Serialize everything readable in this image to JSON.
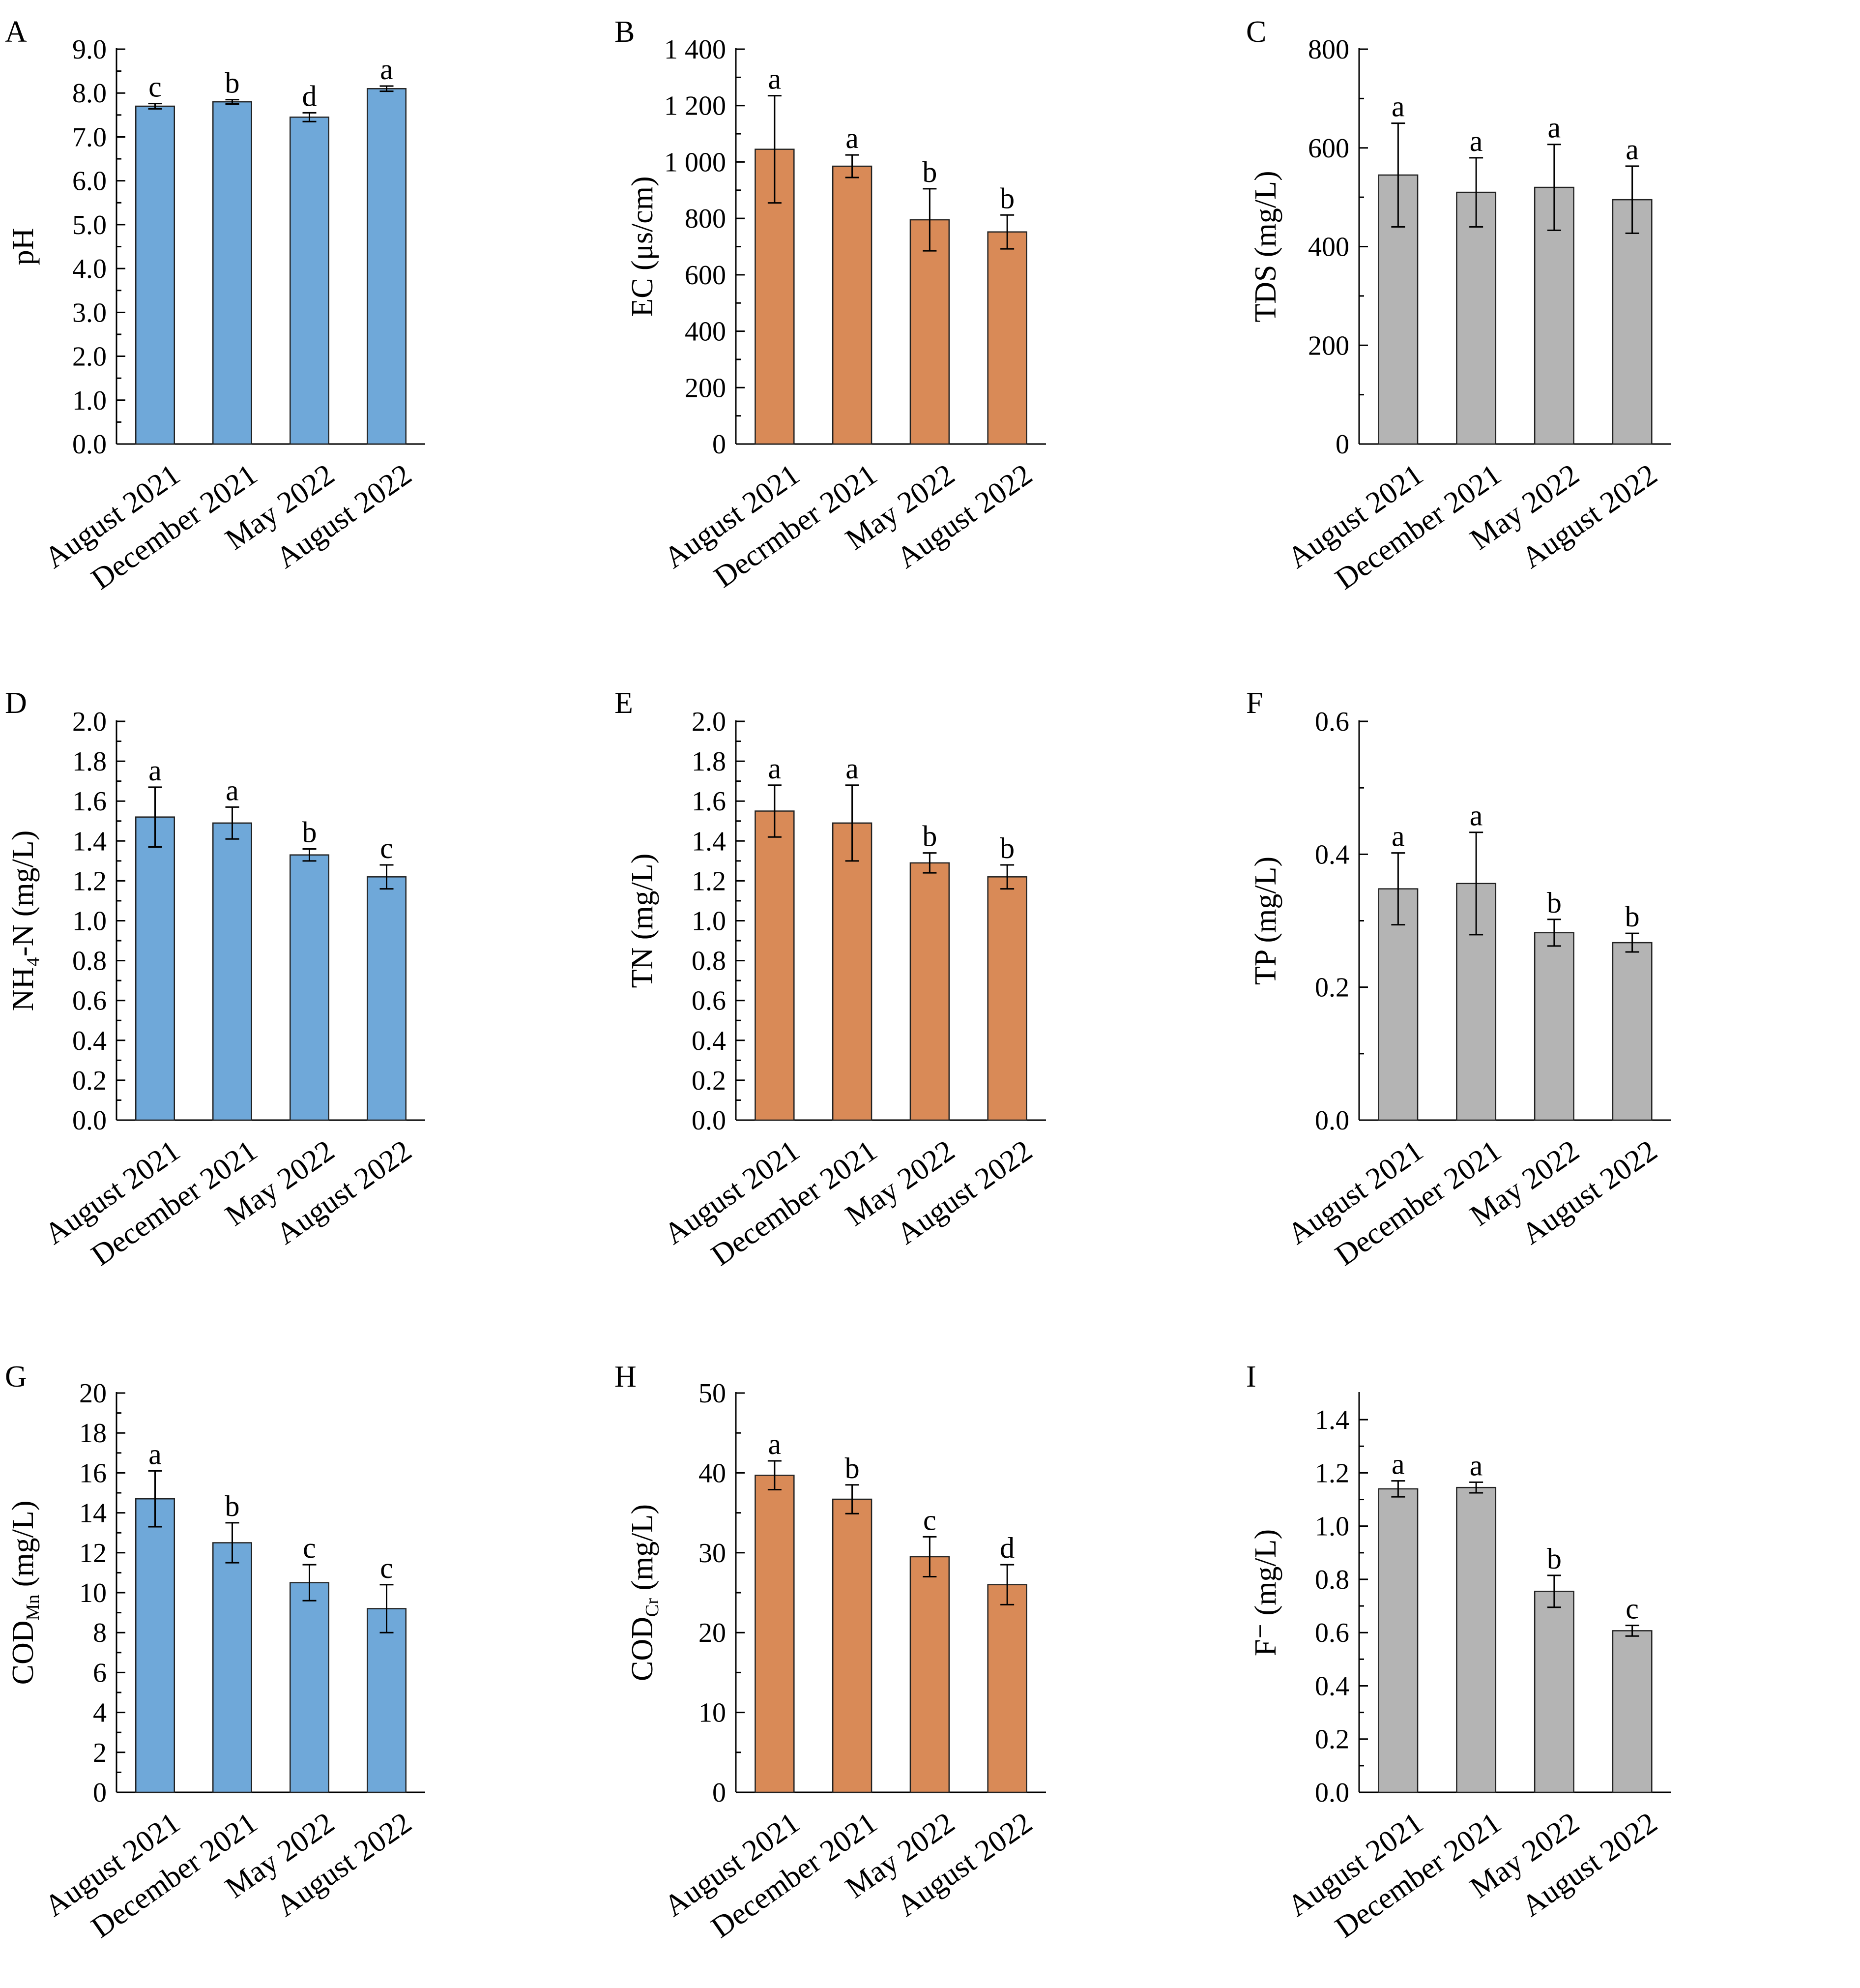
{
  "chart_data": [
    {
      "panel": "A",
      "type": "bar",
      "ylabel": "pH",
      "categories": [
        "August 2021",
        "December 2021",
        "May 2022",
        "August 2022"
      ],
      "values": [
        7.7,
        7.8,
        7.45,
        8.1
      ],
      "errors": [
        0.06,
        0.05,
        0.1,
        0.06
      ],
      "letters": [
        "c",
        "b",
        "d",
        "a"
      ],
      "ylim": [
        0,
        9
      ],
      "yticks": [
        "0.0",
        "1.0",
        "2.0",
        "3.0",
        "4.0",
        "5.0",
        "6.0",
        "7.0",
        "8.0",
        "9.0"
      ],
      "color": "#6fa8d9"
    },
    {
      "panel": "B",
      "type": "bar",
      "ylabel": "EC (μs/cm)",
      "categories": [
        "August 2021",
        "Decrmber 2021",
        "May 2022",
        "August 2022"
      ],
      "values": [
        1045,
        985,
        795,
        752
      ],
      "errors": [
        190,
        40,
        110,
        60
      ],
      "letters": [
        "a",
        "a",
        "b",
        "b"
      ],
      "ylim": [
        0,
        1400
      ],
      "yticks": [
        "0",
        "200",
        "400",
        "600",
        "800",
        "1 000",
        "1 200",
        "1 400"
      ],
      "color": "#d98a57"
    },
    {
      "panel": "C",
      "type": "bar",
      "ylabel": "TDS (mg/L)",
      "categories": [
        "August 2021",
        "December 2021",
        "May 2022",
        "August 2022"
      ],
      "values": [
        545,
        510,
        520,
        495
      ],
      "errors": [
        105,
        70,
        87,
        68
      ],
      "letters": [
        "a",
        "a",
        "a",
        "a"
      ],
      "ylim": [
        0,
        800
      ],
      "yticks": [
        "0",
        "200",
        "400",
        "600",
        "800"
      ],
      "color": "#b4b4b4"
    },
    {
      "panel": "D",
      "type": "bar",
      "ylabel": "NH₄-N (mg/L)",
      "categories": [
        "August 2021",
        "December 2021",
        "May 2022",
        "August  2022"
      ],
      "values": [
        1.52,
        1.49,
        1.33,
        1.22
      ],
      "errors": [
        0.15,
        0.08,
        0.03,
        0.06
      ],
      "letters": [
        "a",
        "a",
        "b",
        "c"
      ],
      "ylim": [
        0,
        2.0
      ],
      "yticks": [
        "0.0",
        "0.2",
        "0.4",
        "0.6",
        "0.8",
        "1.0",
        "1.2",
        "1.4",
        "1.6",
        "1.8",
        "2.0"
      ],
      "color": "#6fa8d9"
    },
    {
      "panel": "E",
      "type": "bar",
      "ylabel": "TN (mg/L)",
      "categories": [
        "August 2021",
        "December 2021",
        "May 2022",
        "August  2022"
      ],
      "values": [
        1.55,
        1.49,
        1.29,
        1.22
      ],
      "errors": [
        0.13,
        0.19,
        0.05,
        0.06
      ],
      "letters": [
        "a",
        "a",
        "b",
        "b"
      ],
      "ylim": [
        0,
        2.0
      ],
      "yticks": [
        "0.0",
        "0.2",
        "0.4",
        "0.6",
        "0.8",
        "1.0",
        "1.2",
        "1.4",
        "1.6",
        "1.8",
        "2.0"
      ],
      "color": "#d98a57"
    },
    {
      "panel": "F",
      "type": "bar",
      "ylabel": "TP (mg/L)",
      "categories": [
        "August 2021",
        "December 2021",
        "May 2022",
        "August  2022"
      ],
      "values": [
        0.348,
        0.356,
        0.282,
        0.267
      ],
      "errors": [
        0.054,
        0.077,
        0.02,
        0.014
      ],
      "letters": [
        "a",
        "a",
        "b",
        "b"
      ],
      "ylim": [
        0,
        0.6
      ],
      "yticks": [
        "0.0",
        "0.2",
        "0.4",
        "0.6"
      ],
      "color": "#b4b4b4"
    },
    {
      "panel": "G",
      "type": "bar",
      "ylabel": "CODMn (mg/L)",
      "categories": [
        "August 2021",
        "December 2021",
        "May 2022",
        "August  2022"
      ],
      "values": [
        14.7,
        12.5,
        10.5,
        9.2
      ],
      "errors": [
        1.4,
        1.0,
        0.9,
        1.2
      ],
      "letters": [
        "a",
        "b",
        "c",
        "c"
      ],
      "ylim": [
        0,
        20
      ],
      "yticks": [
        "0",
        "2",
        "4",
        "6",
        "8",
        "10",
        "12",
        "14",
        "16",
        "18",
        "20"
      ],
      "color": "#6fa8d9"
    },
    {
      "panel": "H",
      "type": "bar",
      "ylabel": "CODCr (mg/L)",
      "categories": [
        "August 2021",
        "December 2021",
        "May 2022",
        "August  2022"
      ],
      "values": [
        39.7,
        36.7,
        29.5,
        26.0
      ],
      "errors": [
        1.8,
        1.8,
        2.5,
        2.5
      ],
      "letters": [
        "a",
        "b",
        "c",
        "d"
      ],
      "ylim": [
        0,
        50
      ],
      "yticks": [
        "0",
        "10",
        "20",
        "30",
        "40",
        "50"
      ],
      "color": "#d98a57"
    },
    {
      "panel": "I",
      "type": "bar",
      "ylabel": "F⁻ (mg/L)",
      "categories": [
        "August 2021",
        "December 2021",
        "May 2022",
        "August  2022"
      ],
      "values": [
        1.14,
        1.145,
        0.755,
        0.607
      ],
      "errors": [
        0.03,
        0.02,
        0.06,
        0.02
      ],
      "letters": [
        "a",
        "a",
        "b",
        "c"
      ],
      "ylim": [
        0,
        1.5
      ],
      "ylim_note_unused": "",
      "yticks": [
        "0.0",
        "0.2",
        "0.4",
        "0.6",
        "0.8",
        "1.0",
        "1.2",
        "1.4"
      ],
      "color": "#b4b4b4"
    }
  ]
}
